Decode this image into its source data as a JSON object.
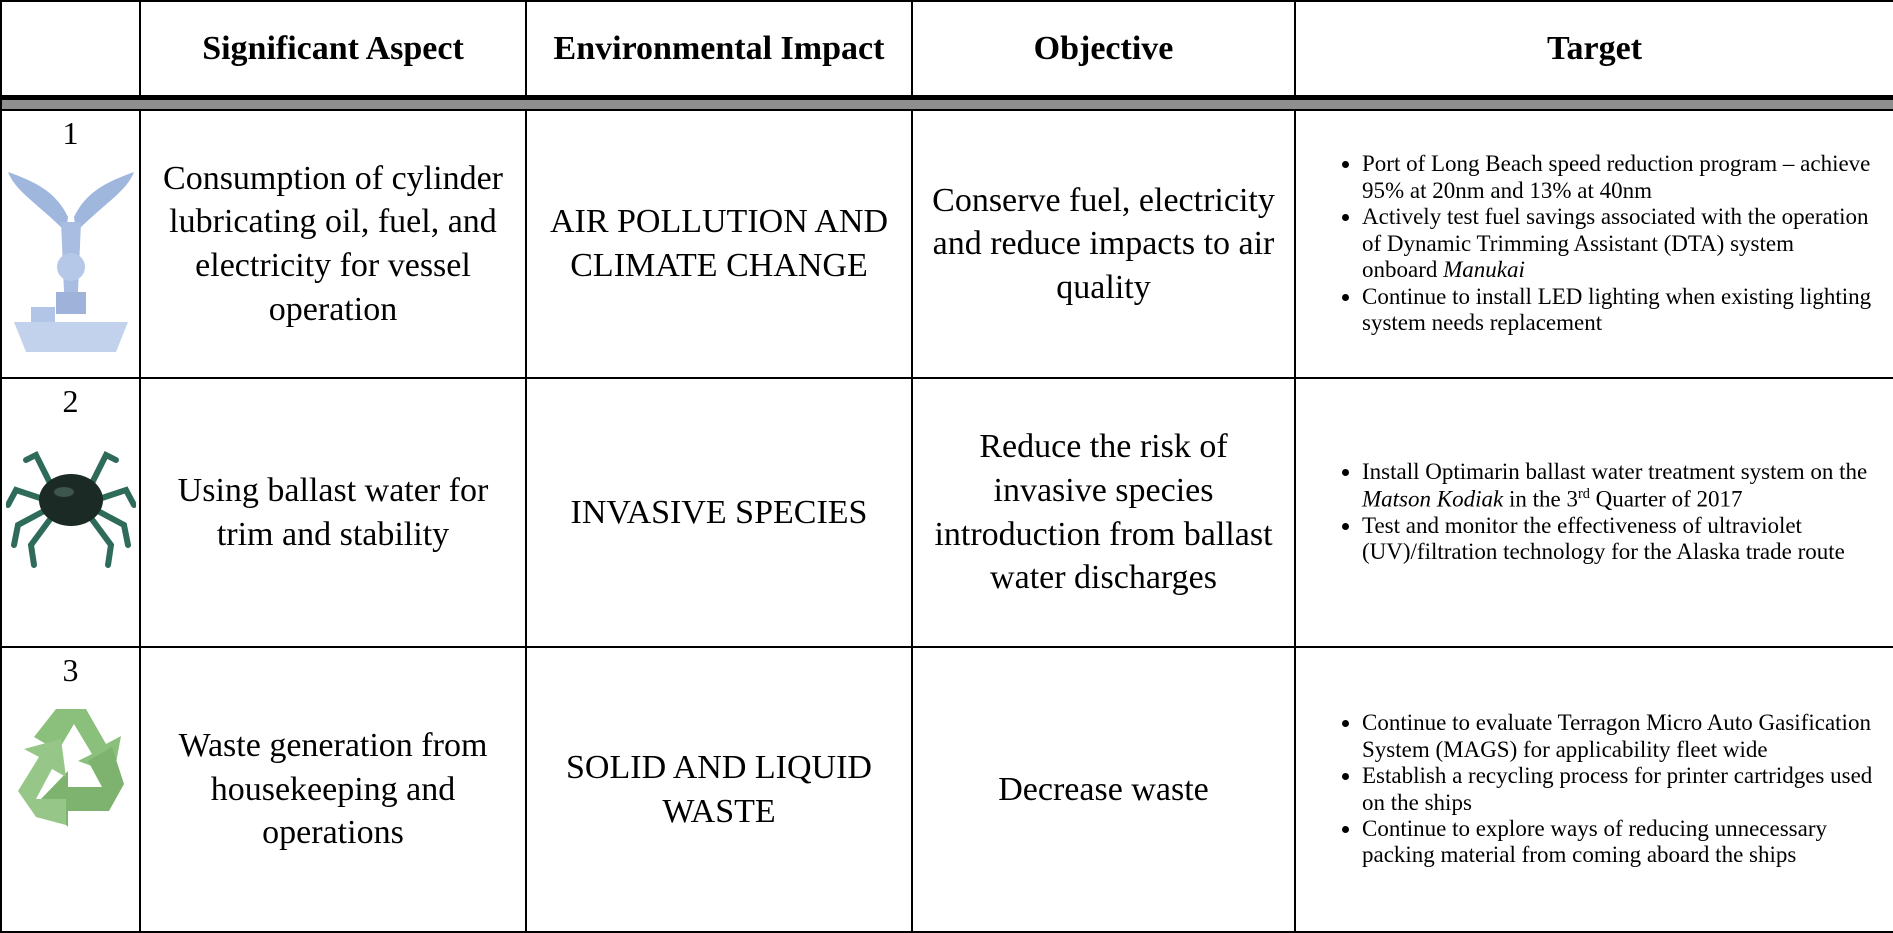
{
  "table": {
    "header": [
      "Significant Aspect",
      "Environmental Impact",
      "Objective",
      "Target"
    ],
    "rows": [
      {
        "number": "1",
        "aspect": "Consumption of cylinder lubricating oil, fuel, and electricity for vessel operation",
        "impact": "AIR POLLUTION AND CLIMATE CHANGE",
        "objective": "Conserve fuel, electricity and reduce impacts to air quality",
        "target": [
          [
            {
              "text": "Port of Long Beach speed reduction program – achieve 95% at 20nm and 13% at 40nm"
            }
          ],
          [
            {
              "text": "Actively test fuel savings associated with the operation of Dynamic Trimming Assistant (DTA) system onboard "
            },
            {
              "text": "Manukai",
              "style": "italic"
            }
          ],
          [
            {
              "text": "Continue to install LED lighting when existing lighting system needs replacement"
            }
          ]
        ]
      },
      {
        "number": "2",
        "aspect": "Using ballast water for trim and stability",
        "impact": "INVASIVE SPECIES",
        "objective": "Reduce the risk of invasive species introduction from ballast water discharges",
        "target": [
          [
            {
              "text": "Install Optimarin ballast water treatment system on the "
            },
            {
              "text": "Matson Kodiak",
              "style": "italic"
            },
            {
              "text": " in the 3"
            },
            {
              "text": "rd",
              "style": "superscript"
            },
            {
              "text": " Quarter of 2017"
            }
          ],
          [
            {
              "text": "Test and monitor the effectiveness of ultraviolet (UV)/filtration technology for the Alaska trade route"
            }
          ]
        ]
      },
      {
        "number": "3",
        "aspect": "Waste generation from housekeeping and operations",
        "impact": "SOLID AND LIQUID WASTE",
        "objective": "Decrease waste",
        "target": [
          [
            {
              "text": "Continue to evaluate Terragon Micro Auto Gasification System (MAGS) for applicability fleet wide"
            }
          ],
          [
            {
              "text": "Establish a recycling process for printer cartridges used on the ships"
            }
          ],
          [
            {
              "text": "Continue to explore ways of reducing unnecessary packing material from coming aboard the ships"
            }
          ]
        ]
      }
    ]
  }
}
